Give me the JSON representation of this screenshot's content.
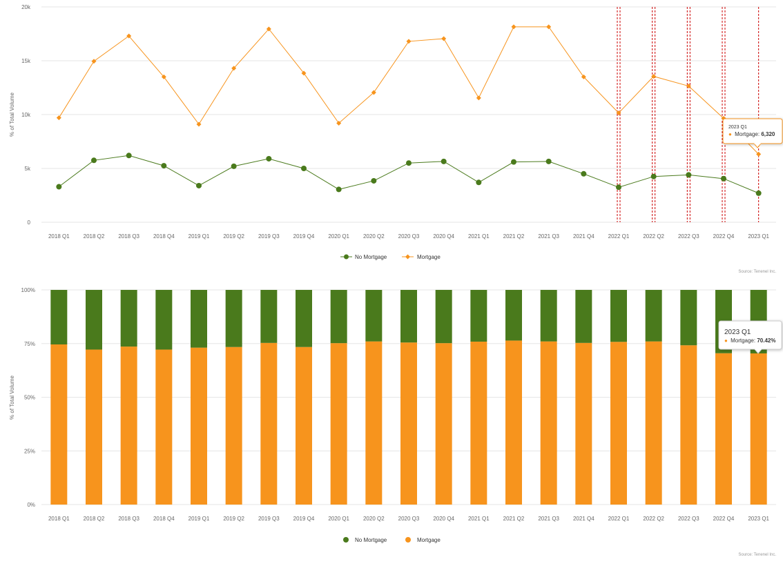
{
  "colors": {
    "no_mortgage": "#4a7a1c",
    "mortgage": "#f7941d",
    "grid": "#e6e6e6",
    "crosshair": "#cc0000"
  },
  "chart_data": [
    {
      "type": "line",
      "ylabel": "% of Total Volume",
      "ylim": [
        0,
        20000
      ],
      "y_ticks": [
        {
          "value": 0,
          "label": "0"
        },
        {
          "value": 5000,
          "label": "5k"
        },
        {
          "value": 10000,
          "label": "10k"
        },
        {
          "value": 15000,
          "label": "15k"
        },
        {
          "value": 20000,
          "label": "20k"
        }
      ],
      "categories": [
        "2018 Q1",
        "2018 Q2",
        "2018 Q3",
        "2018 Q4",
        "2019 Q1",
        "2019 Q2",
        "2019 Q3",
        "2019 Q4",
        "2020 Q1",
        "2020 Q2",
        "2020 Q3",
        "2020 Q4",
        "2021 Q1",
        "2021 Q2",
        "2021 Q3",
        "2021 Q4",
        "2022 Q1",
        "2022 Q2",
        "2022 Q3",
        "2022 Q4",
        "2023 Q1"
      ],
      "series": [
        {
          "name": "No Mortgage",
          "marker": "circle",
          "values": [
            3300,
            5750,
            6200,
            5250,
            3400,
            5200,
            5900,
            5000,
            3050,
            3850,
            5500,
            5650,
            3700,
            5600,
            5650,
            4500,
            3250,
            4250,
            4400,
            4050,
            2700
          ]
        },
        {
          "name": "Mortgage",
          "marker": "diamond",
          "values": [
            9700,
            14950,
            17300,
            13500,
            9100,
            14300,
            17950,
            13850,
            9200,
            12050,
            16800,
            17050,
            11550,
            18150,
            18150,
            13500,
            10150,
            13550,
            12650,
            9650,
            6320
          ]
        }
      ],
      "legend": {
        "placement": "bottom-center",
        "items": [
          "No Mortgage",
          "Mortgage"
        ]
      },
      "crosshair_categories": [
        "2022 Q1",
        "2022 Q2",
        "2022 Q3",
        "2022 Q4",
        "2023 Q1"
      ],
      "tooltip": {
        "title": "2023 Q1",
        "series": "Mortgage",
        "value_label": "6,320"
      },
      "source": "Source: Tenenel Inc."
    },
    {
      "type": "bar",
      "stacked": "percent",
      "ylabel": "% of Total Volume",
      "ylim": [
        0,
        100
      ],
      "y_ticks": [
        {
          "value": 0,
          "label": "0%"
        },
        {
          "value": 25,
          "label": "25%"
        },
        {
          "value": 50,
          "label": "50%"
        },
        {
          "value": 75,
          "label": "75%"
        },
        {
          "value": 100,
          "label": "100%"
        }
      ],
      "categories": [
        "2018 Q1",
        "2018 Q2",
        "2018 Q3",
        "2018 Q4",
        "2019 Q1",
        "2019 Q2",
        "2019 Q3",
        "2019 Q4",
        "2020 Q1",
        "2020 Q2",
        "2020 Q3",
        "2020 Q4",
        "2021 Q1",
        "2021 Q2",
        "2021 Q3",
        "2021 Q4",
        "2022 Q1",
        "2022 Q2",
        "2022 Q3",
        "2022 Q4",
        "2023 Q1"
      ],
      "series": [
        {
          "name": "Mortgage",
          "values": [
            74.6,
            72.2,
            73.6,
            72.2,
            73.1,
            73.4,
            75.3,
            73.4,
            75.2,
            76.0,
            75.5,
            75.2,
            75.9,
            76.4,
            76.0,
            75.3,
            75.8,
            76.0,
            74.2,
            70.5,
            70.42
          ]
        },
        {
          "name": "No Mortgage",
          "values": [
            25.4,
            27.8,
            26.4,
            27.8,
            26.9,
            26.6,
            24.7,
            26.6,
            24.8,
            24.0,
            24.5,
            24.8,
            24.1,
            23.6,
            24.0,
            24.7,
            24.2,
            24.0,
            25.8,
            29.5,
            29.58
          ]
        }
      ],
      "legend": {
        "placement": "bottom-center",
        "items": [
          "No Mortgage",
          "Mortgage"
        ]
      },
      "tooltip": {
        "title": "2023 Q1",
        "series": "Mortgage",
        "value_label": "70.42%"
      },
      "source": "Source: Tenenel Inc."
    }
  ]
}
